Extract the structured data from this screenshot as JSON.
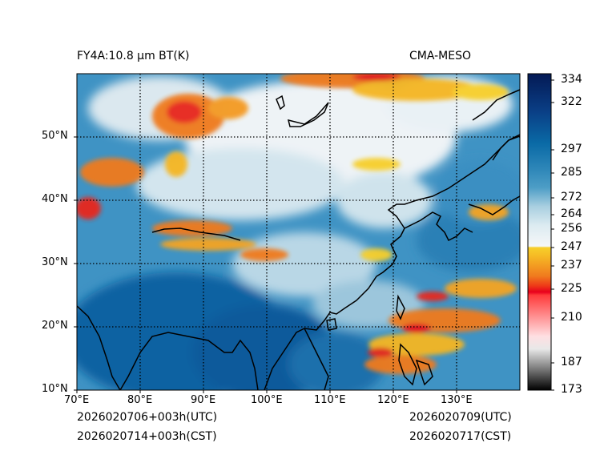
{
  "titles": {
    "left": "FY4A:10.8 µm BT(K)",
    "right": "CMA-MESO"
  },
  "map": {
    "lon_range": [
      70,
      140
    ],
    "lat_range": [
      10,
      60
    ],
    "lon_ticks": [
      "70°E",
      "80°E",
      "90°E",
      "100°E",
      "110°E",
      "120°E",
      "130°E"
    ],
    "lat_ticks": [
      "50°N",
      "40°N",
      "30°N",
      "20°N",
      "10°N"
    ],
    "gridlines": "dotted"
  },
  "colorbar": {
    "min": 173,
    "max": 339,
    "ticks": [
      "334",
      "322",
      "297",
      "285",
      "272",
      "264",
      "256",
      "247",
      "237",
      "225",
      "210",
      "187",
      "173"
    ],
    "tick_values": [
      334,
      322,
      297,
      285,
      272,
      264,
      256,
      247,
      237,
      225,
      210,
      187,
      173
    ],
    "colors": {
      "cold_black": "#0a0a0a",
      "grey": "#bdbdbd",
      "red": "#e8001c",
      "orange": "#f07a1e",
      "yellow": "#f7cf2a",
      "white": "#f2f6f8",
      "light_blue": "#a9cfe0",
      "mid_blue": "#2d86b8",
      "dark_blue": "#0a4f8c",
      "navy": "#041a55"
    }
  },
  "footer": {
    "left_utc": "2026020706+003h(UTC)",
    "left_cst": "2026020714+003h(CST)",
    "right_utc": "2026020709(UTC)",
    "right_cst": "2026020717(CST)"
  }
}
